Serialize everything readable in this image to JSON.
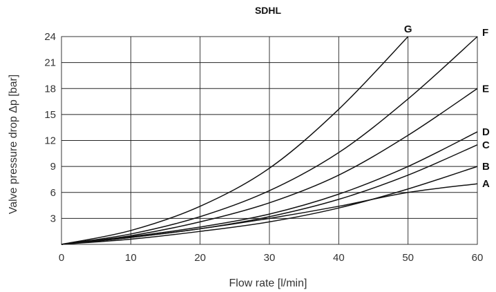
{
  "chart_data": {
    "type": "line",
    "title": "SDHL",
    "xlabel": "Flow rate [l/min]",
    "ylabel": "Valve pressure drop Δp [bar]",
    "xlim": [
      0,
      60
    ],
    "ylim": [
      0,
      24
    ],
    "xticks": [
      0,
      10,
      20,
      30,
      40,
      50,
      60
    ],
    "yticks": [
      3,
      6,
      9,
      12,
      15,
      18,
      21,
      24
    ],
    "grid": true,
    "series": [
      {
        "name": "A",
        "x": [
          0,
          10,
          20,
          30,
          40,
          50,
          60
        ],
        "y": [
          0,
          0.8,
          1.8,
          3.0,
          4.4,
          6.0,
          7.0
        ]
      },
      {
        "name": "B",
        "x": [
          0,
          10,
          20,
          30,
          40,
          50,
          60
        ],
        "y": [
          0,
          0.6,
          1.5,
          2.6,
          4.2,
          6.4,
          9.0
        ]
      },
      {
        "name": "C",
        "x": [
          0,
          10,
          20,
          30,
          40,
          50,
          60
        ],
        "y": [
          0,
          0.8,
          1.8,
          3.2,
          5.2,
          8.0,
          11.5
        ]
      },
      {
        "name": "D",
        "x": [
          0,
          10,
          20,
          30,
          40,
          50,
          60
        ],
        "y": [
          0,
          0.9,
          2.0,
          3.5,
          5.8,
          9.0,
          13.0
        ]
      },
      {
        "name": "E",
        "x": [
          0,
          10,
          20,
          30,
          40,
          50,
          60
        ],
        "y": [
          0,
          1.0,
          2.6,
          4.8,
          8.0,
          12.6,
          18.0
        ]
      },
      {
        "name": "F",
        "x": [
          0,
          10,
          20,
          30,
          40,
          50,
          60
        ],
        "y": [
          0,
          1.2,
          3.2,
          6.2,
          10.6,
          16.8,
          24.0
        ]
      },
      {
        "name": "G",
        "x": [
          0,
          10,
          20,
          30,
          40,
          50
        ],
        "y": [
          0,
          1.6,
          4.4,
          8.8,
          15.6,
          24.0
        ]
      }
    ]
  }
}
